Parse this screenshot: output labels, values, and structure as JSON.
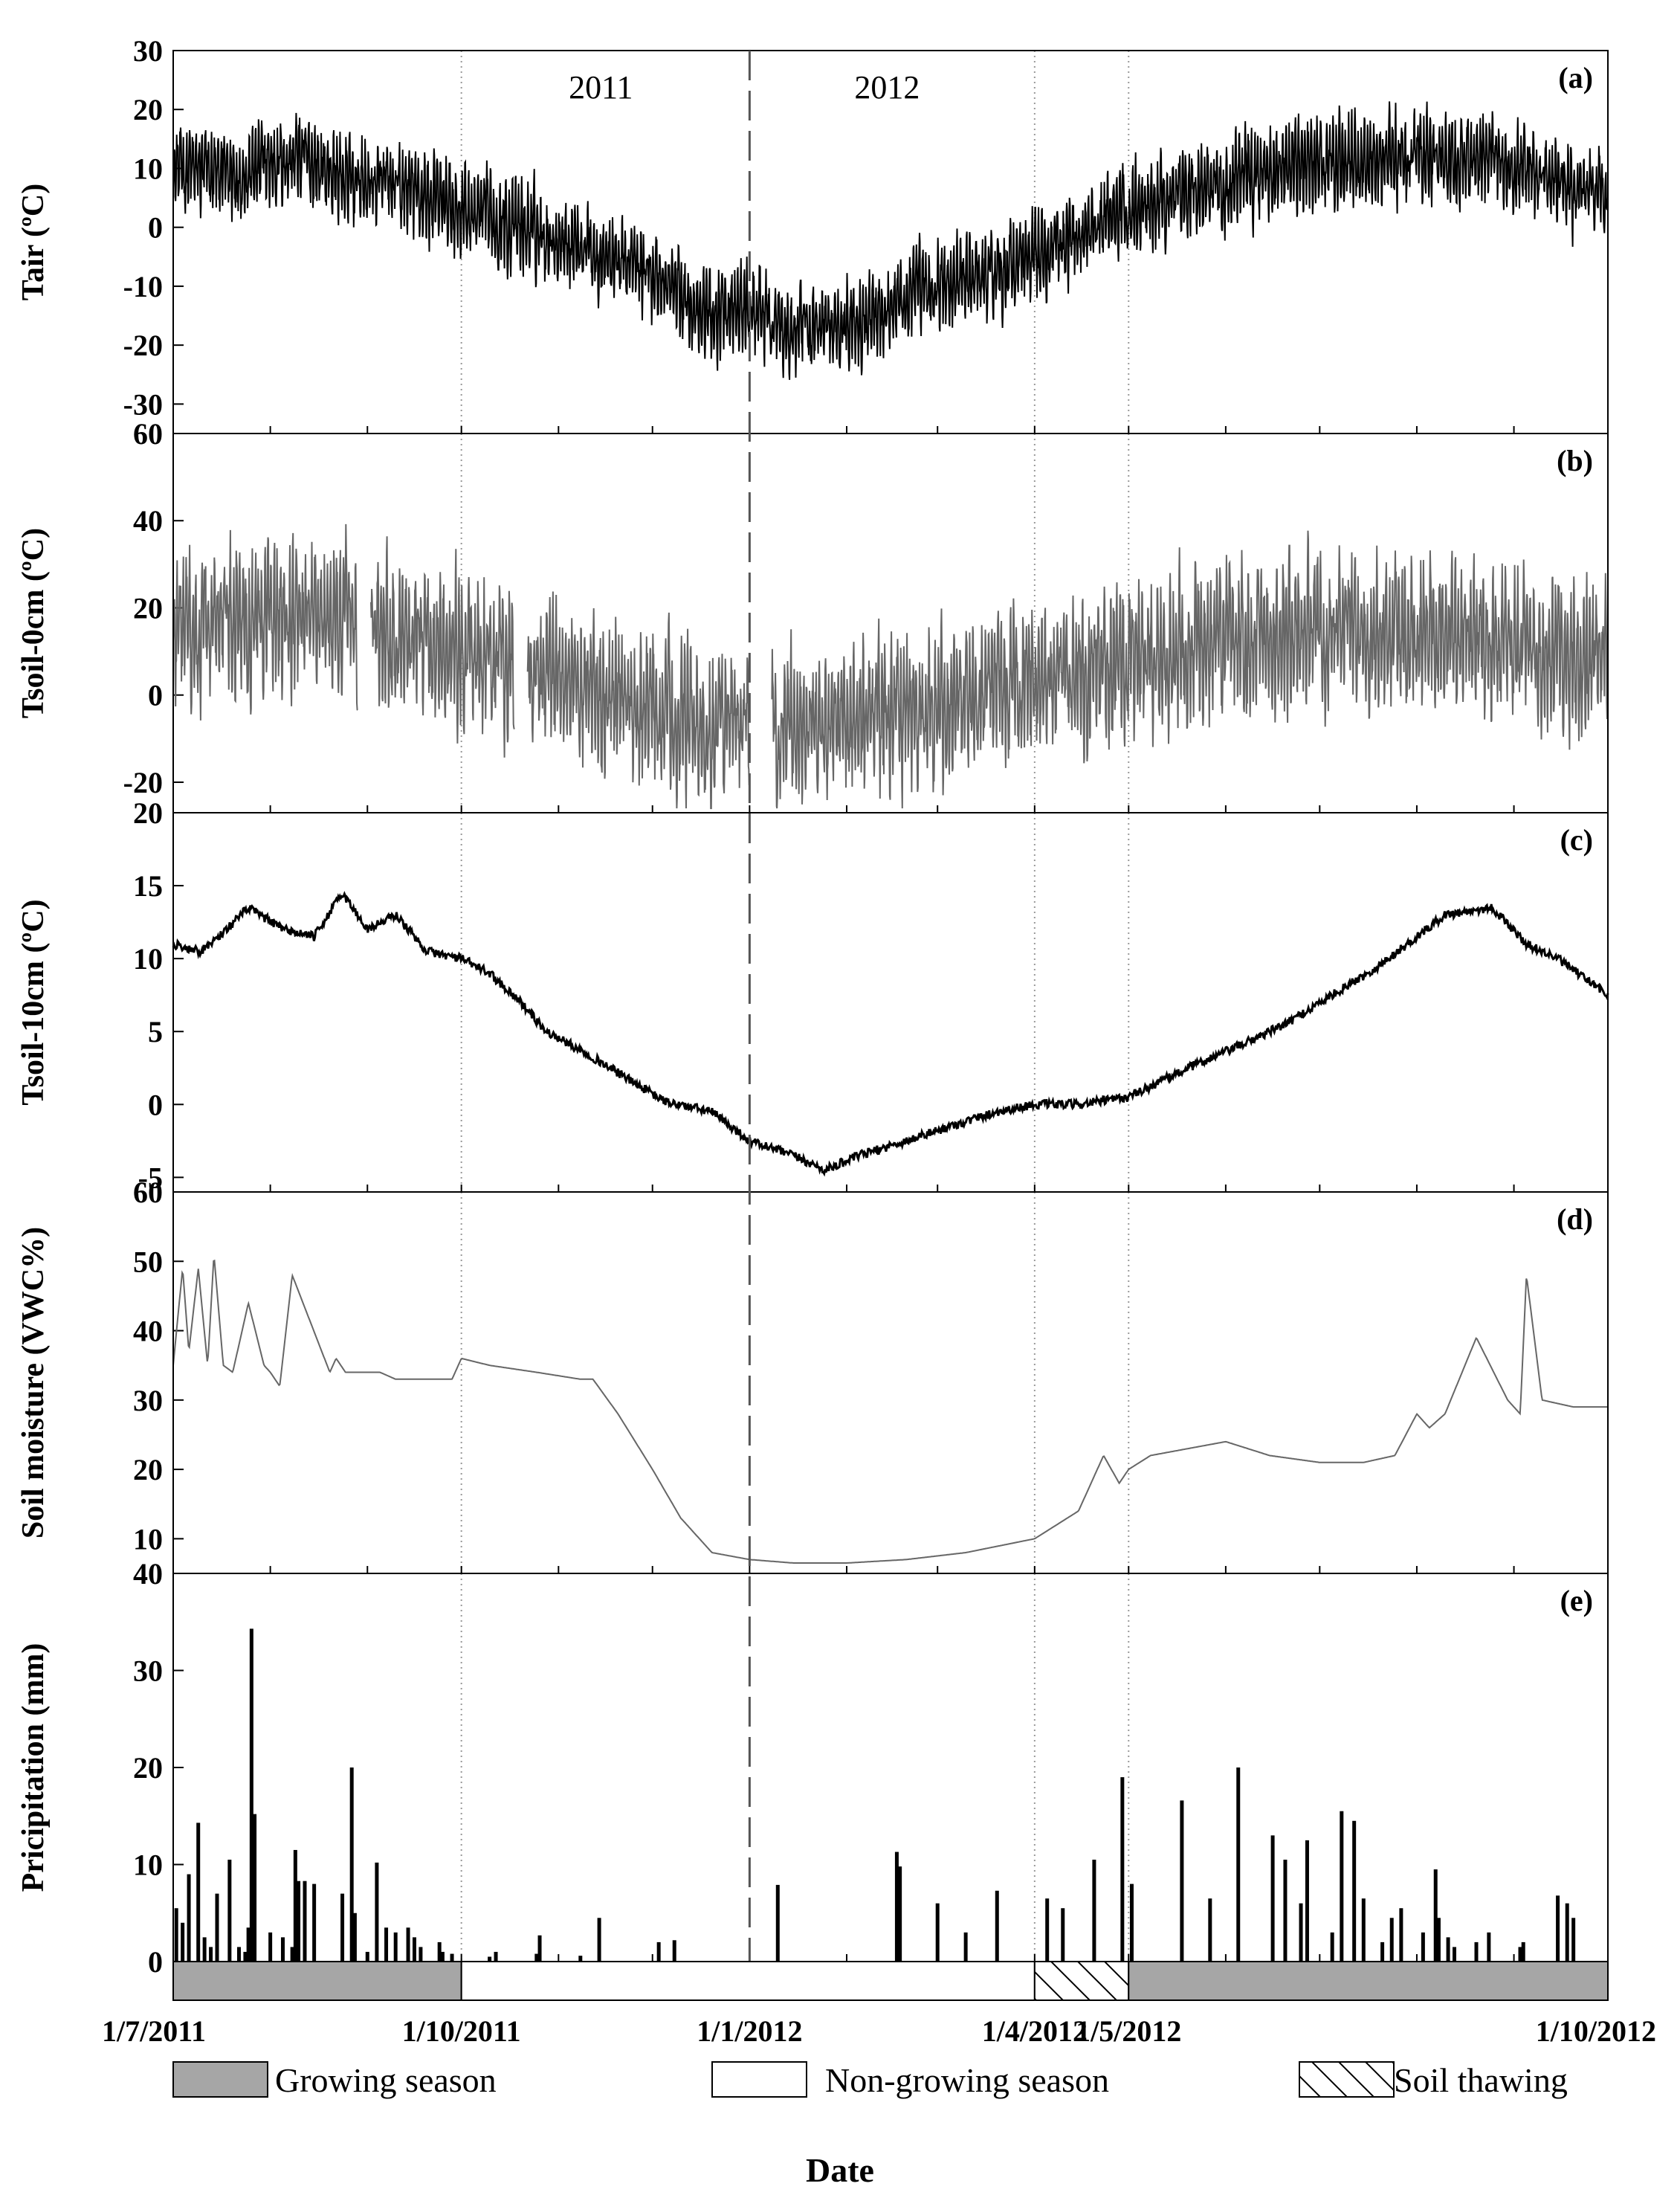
{
  "chart_data": [
    {
      "panel": "(a)",
      "type": "line",
      "ylabel": "Tair (ºC)",
      "ylim": [
        -35,
        30
      ],
      "yticks": [
        30,
        20,
        10,
        0,
        -10,
        -20,
        -30
      ],
      "color": "#000000",
      "mode": "noisy",
      "envelope_mean": {
        "x": [
          "2011-07-01",
          "2011-07-20",
          "2011-08-10",
          "2011-08-25",
          "2011-09-15",
          "2011-10-01",
          "2011-10-20",
          "2011-11-10",
          "2011-12-01",
          "2011-12-20",
          "2012-01-01",
          "2012-01-15",
          "2012-02-01",
          "2012-02-20",
          "2012-03-15",
          "2012-04-01",
          "2012-04-20",
          "2012-05-10",
          "2012-06-01",
          "2012-07-01",
          "2012-08-01",
          "2012-08-20",
          "2012-09-15",
          "2012-10-01"
        ],
        "y": [
          10,
          9,
          12,
          8,
          6,
          3,
          0,
          -3,
          -8,
          -15,
          -14,
          -18,
          -16,
          -12,
          -8,
          -5,
          0,
          5,
          8,
          11,
          12,
          12,
          8,
          5
        ]
      },
      "envelope_amplitude": 8
    },
    {
      "panel": "(b)",
      "type": "line",
      "ylabel": "Tsoil-0cm (ºC)",
      "ylim": [
        -27,
        60
      ],
      "yticks": [
        60,
        40,
        20,
        0,
        -20
      ],
      "color": "#666666",
      "mode": "noisy",
      "gaps": [
        [
          "2011-08-29",
          "2011-09-02"
        ],
        [
          "2011-10-18",
          "2011-10-22"
        ],
        [
          "2012-01-01",
          "2012-01-08"
        ]
      ],
      "envelope_mean": {
        "x": [
          "2011-07-01",
          "2011-08-01",
          "2011-08-28",
          "2011-09-15",
          "2011-10-01",
          "2011-10-25",
          "2011-11-15",
          "2011-12-01",
          "2011-12-20",
          "2012-01-01",
          "2012-01-20",
          "2012-02-10",
          "2012-03-01",
          "2012-04-01",
          "2012-05-01",
          "2012-06-01",
          "2012-07-01",
          "2012-08-01",
          "2012-09-01",
          "2012-10-01"
        ],
        "y": [
          15,
          18,
          17,
          13,
          10,
          5,
          0,
          -3,
          -7,
          -5,
          -8,
          -5,
          -2,
          3,
          8,
          12,
          15,
          15,
          12,
          8
        ]
      },
      "envelope_amplitude": 18
    },
    {
      "panel": "(c)",
      "type": "line",
      "ylabel": "Tsoil-10cm (ºC)",
      "ylim": [
        -6,
        20
      ],
      "yticks": [
        20,
        15,
        10,
        5,
        0,
        -5
      ],
      "color": "#000000",
      "mode": "smooth",
      "x": [
        "2011-07-01",
        "2011-07-10",
        "2011-07-18",
        "2011-07-25",
        "2011-08-05",
        "2011-08-15",
        "2011-08-24",
        "2011-09-01",
        "2011-09-10",
        "2011-09-20",
        "2011-10-01",
        "2011-10-10",
        "2011-10-20",
        "2011-10-28",
        "2011-11-10",
        "2011-11-25",
        "2011-12-05",
        "2011-12-20",
        "2012-01-01",
        "2012-01-15",
        "2012-01-25",
        "2012-02-05",
        "2012-02-20",
        "2012-03-05",
        "2012-03-20",
        "2012-04-01",
        "2012-04-15",
        "2012-05-01",
        "2012-05-20",
        "2012-06-05",
        "2012-06-20",
        "2012-07-05",
        "2012-07-20",
        "2012-08-01",
        "2012-08-10",
        "2012-08-25",
        "2012-09-05",
        "2012-09-15",
        "2012-10-01"
      ],
      "y": [
        11,
        10.5,
        12,
        13.5,
        12,
        11.5,
        14.5,
        12,
        13,
        10.5,
        10,
        9,
        7,
        5,
        3.5,
        1.5,
        0.2,
        -0.5,
        -2.5,
        -3.5,
        -4.5,
        -3.5,
        -2.5,
        -1.5,
        -0.5,
        0,
        0,
        0.5,
        2.5,
        4,
        5.5,
        7.5,
        9.5,
        11.5,
        13,
        13.5,
        11,
        10,
        7.5
      ],
      "noise": 0.6
    },
    {
      "panel": "(d)",
      "type": "line",
      "ylabel": "Soil moisture (VWC%)",
      "ylim": [
        5,
        60
      ],
      "yticks": [
        60,
        50,
        40,
        30,
        20,
        10
      ],
      "color": "#666666",
      "mode": "smooth",
      "x": [
        "2011-07-01",
        "2011-07-04",
        "2011-07-06",
        "2011-07-09",
        "2011-07-12",
        "2011-07-14",
        "2011-07-17",
        "2011-07-20",
        "2011-07-25",
        "2011-07-30",
        "2011-08-01",
        "2011-08-04",
        "2011-08-08",
        "2011-08-20",
        "2011-08-22",
        "2011-08-25",
        "2011-09-05",
        "2011-09-10",
        "2011-09-20",
        "2011-09-28",
        "2011-10-01",
        "2011-10-10",
        "2011-10-25",
        "2011-11-08",
        "2011-11-12",
        "2011-11-20",
        "2011-12-01",
        "2011-12-10",
        "2011-12-20",
        "2012-01-01",
        "2012-01-15",
        "2012-02-01",
        "2012-02-20",
        "2012-03-10",
        "2012-04-01",
        "2012-04-15",
        "2012-04-23",
        "2012-04-28",
        "2012-05-01",
        "2012-05-08",
        "2012-05-20",
        "2012-06-01",
        "2012-06-15",
        "2012-07-01",
        "2012-07-15",
        "2012-07-25",
        "2012-08-01",
        "2012-08-05",
        "2012-08-10",
        "2012-08-20",
        "2012-08-30",
        "2012-09-03",
        "2012-09-05",
        "2012-09-10",
        "2012-09-20",
        "2012-10-01"
      ],
      "y": [
        35,
        49,
        37,
        49,
        35,
        51,
        35,
        34,
        44,
        35,
        34,
        32,
        48,
        34,
        36,
        34,
        34,
        33,
        33,
        33,
        36,
        35,
        34,
        33,
        33,
        28,
        20,
        13,
        8,
        7,
        6.5,
        6.5,
        7,
        8,
        10,
        14,
        22,
        18,
        20,
        22,
        23,
        24,
        22,
        21,
        21,
        22,
        28,
        26,
        28,
        39,
        30,
        28,
        48,
        30,
        29,
        29
      ]
    },
    {
      "panel": "(e)",
      "type": "bar",
      "ylabel": "Pricipitation (mm)",
      "ylim": [
        0,
        40
      ],
      "yticks": [
        40,
        30,
        20,
        10,
        0
      ],
      "color": "#000000",
      "x": [
        "2011-07-02",
        "2011-07-04",
        "2011-07-06",
        "2011-07-09",
        "2011-07-11",
        "2011-07-13",
        "2011-07-15",
        "2011-07-19",
        "2011-07-22",
        "2011-07-24",
        "2011-07-25",
        "2011-07-26",
        "2011-07-27",
        "2011-08-01",
        "2011-08-05",
        "2011-08-08",
        "2011-08-09",
        "2011-08-10",
        "2011-08-12",
        "2011-08-15",
        "2011-08-24",
        "2011-08-27",
        "2011-08-28",
        "2011-09-01",
        "2011-09-04",
        "2011-09-07",
        "2011-09-10",
        "2011-09-14",
        "2011-09-16",
        "2011-09-18",
        "2011-09-24",
        "2011-09-25",
        "2011-09-28",
        "2011-10-10",
        "2011-10-12",
        "2011-10-25",
        "2011-10-26",
        "2011-11-08",
        "2011-11-14",
        "2011-12-03",
        "2011-12-08",
        "2012-01-10",
        "2012-02-17",
        "2012-02-18",
        "2012-03-01",
        "2012-03-10",
        "2012-03-20",
        "2012-04-05",
        "2012-04-10",
        "2012-04-20",
        "2012-04-29",
        "2012-05-02",
        "2012-05-18",
        "2012-05-27",
        "2012-06-05",
        "2012-06-16",
        "2012-06-20",
        "2012-06-25",
        "2012-06-27",
        "2012-07-05",
        "2012-07-08",
        "2012-07-12",
        "2012-07-15",
        "2012-07-21",
        "2012-07-24",
        "2012-07-27",
        "2012-08-03",
        "2012-08-07",
        "2012-08-08",
        "2012-08-11",
        "2012-08-13",
        "2012-08-20",
        "2012-08-24",
        "2012-09-03",
        "2012-09-04",
        "2012-09-15",
        "2012-09-18",
        "2012-09-20"
      ],
      "values": [
        5.5,
        4,
        9,
        14.3,
        2.5,
        1.5,
        7,
        10.5,
        1.5,
        1,
        3.5,
        34.3,
        15.2,
        3,
        2.5,
        1.5,
        11.5,
        8.3,
        8.3,
        8,
        7,
        20,
        5,
        1,
        10.2,
        3.5,
        3,
        3.5,
        2.5,
        1.5,
        2,
        1,
        0.8,
        0.5,
        1,
        0.8,
        2.7,
        0.6,
        4.5,
        2,
        2.2,
        7.9,
        11.3,
        9.8,
        6,
        3,
        7.3,
        6.5,
        5.5,
        10.5,
        19,
        8,
        16.6,
        6.5,
        20,
        13,
        10.5,
        6,
        12.5,
        3,
        15.5,
        14.5,
        6.5,
        2,
        4.5,
        5.5,
        3,
        9.5,
        4.5,
        2.5,
        1.5,
        2,
        3,
        1.5,
        2,
        6.8,
        6,
        4.5
      ]
    }
  ],
  "x_axis": {
    "title": "Date",
    "start": "2011-07-01",
    "end": "2012-10-01",
    "tick_labels": [
      "1/7/2011",
      "1/10/2011",
      "1/1/2012",
      "1/4/2012",
      "1/5/2012",
      "1/10/2012"
    ],
    "tick_dates": [
      "2011-07-01",
      "2011-10-01",
      "2012-01-01",
      "2012-04-01",
      "2012-05-01",
      "2012-10-01"
    ],
    "minor_ticks_monthly": true
  },
  "year_labels": [
    "2011",
    "2012"
  ],
  "year_divider_date": "2012-01-01",
  "season_bar": [
    {
      "type": "growing",
      "start": "2011-07-01",
      "end": "2011-10-01"
    },
    {
      "type": "non-growing",
      "start": "2011-10-01",
      "end": "2012-04-01"
    },
    {
      "type": "thawing",
      "start": "2012-04-01",
      "end": "2012-05-01"
    },
    {
      "type": "growing",
      "start": "2012-05-01",
      "end": "2012-10-01"
    }
  ],
  "legend": [
    {
      "type": "growing",
      "label": "Growing season"
    },
    {
      "type": "non-growing",
      "label": "Non-growing season"
    },
    {
      "type": "thawing",
      "label": "Soil thawing"
    }
  ],
  "colors": {
    "growing": "#a6a6a6",
    "non_growing": "#ffffff",
    "tsoil0": "#666666",
    "soil_moisture": "#666666",
    "line": "#000000"
  }
}
